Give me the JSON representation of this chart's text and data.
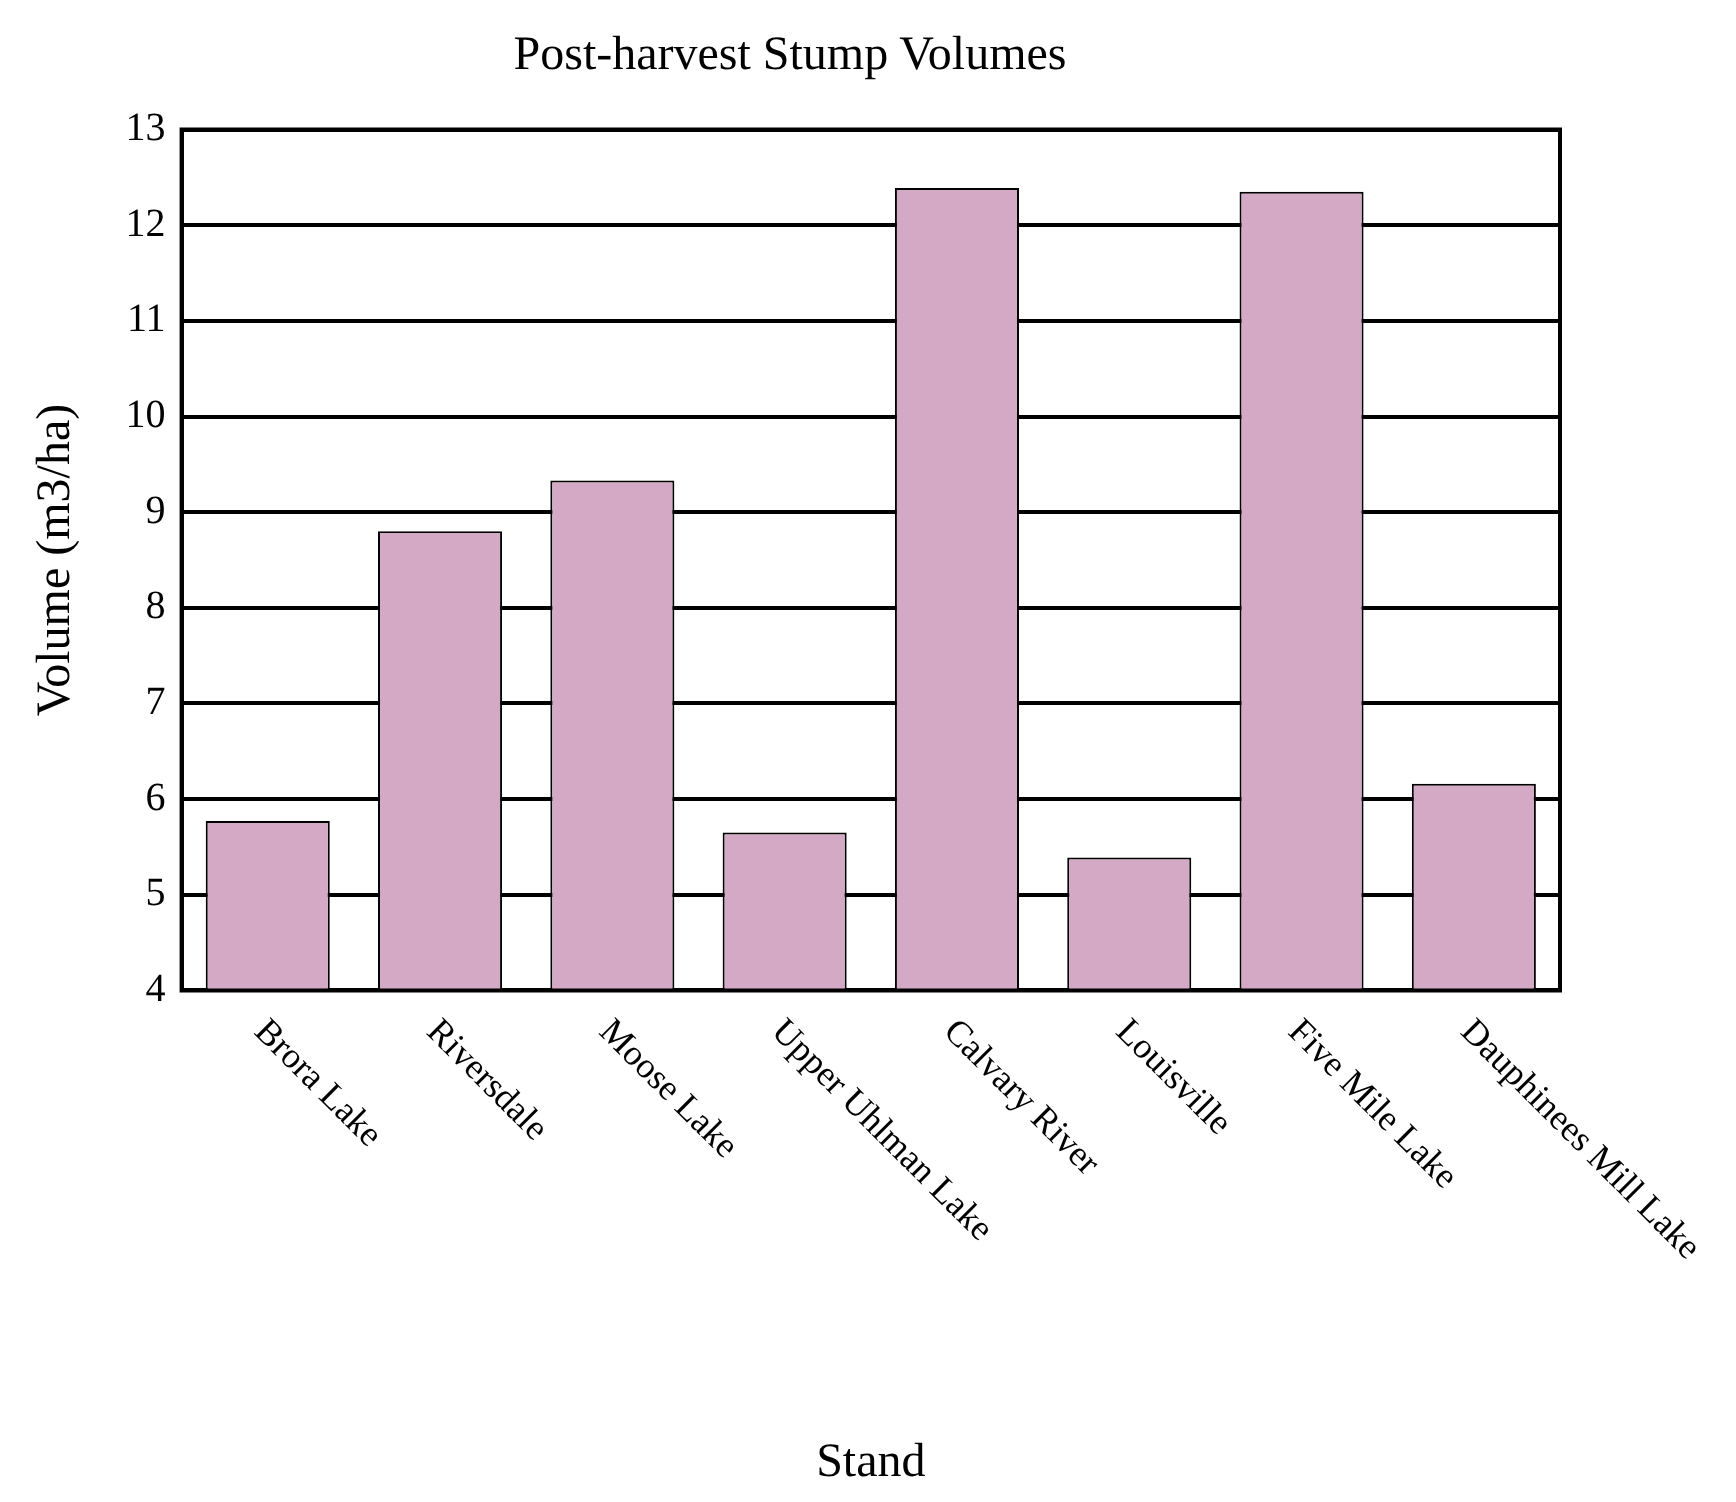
{
  "chart_data": {
    "type": "bar",
    "title": "Post-harvest Stump Volumes",
    "xlabel": "Stand",
    "ylabel": "Volume (m3/ha)",
    "categories": [
      "Brora Lake",
      "Riversdale",
      "Moose Lake",
      "Upper Uhlman Lake",
      "Calvary River",
      "Louisville",
      "Five Mile Lake",
      "Dauphinees Mill Lake"
    ],
    "values": [
      5.77,
      8.8,
      9.33,
      5.65,
      12.39,
      5.39,
      12.35,
      6.16
    ],
    "color": "#d4a9c6",
    "ylim": [
      4,
      13
    ],
    "yticks": [
      4,
      5,
      6,
      7,
      8,
      9,
      10,
      11,
      12,
      13
    ],
    "grid": "y",
    "legend": false
  }
}
